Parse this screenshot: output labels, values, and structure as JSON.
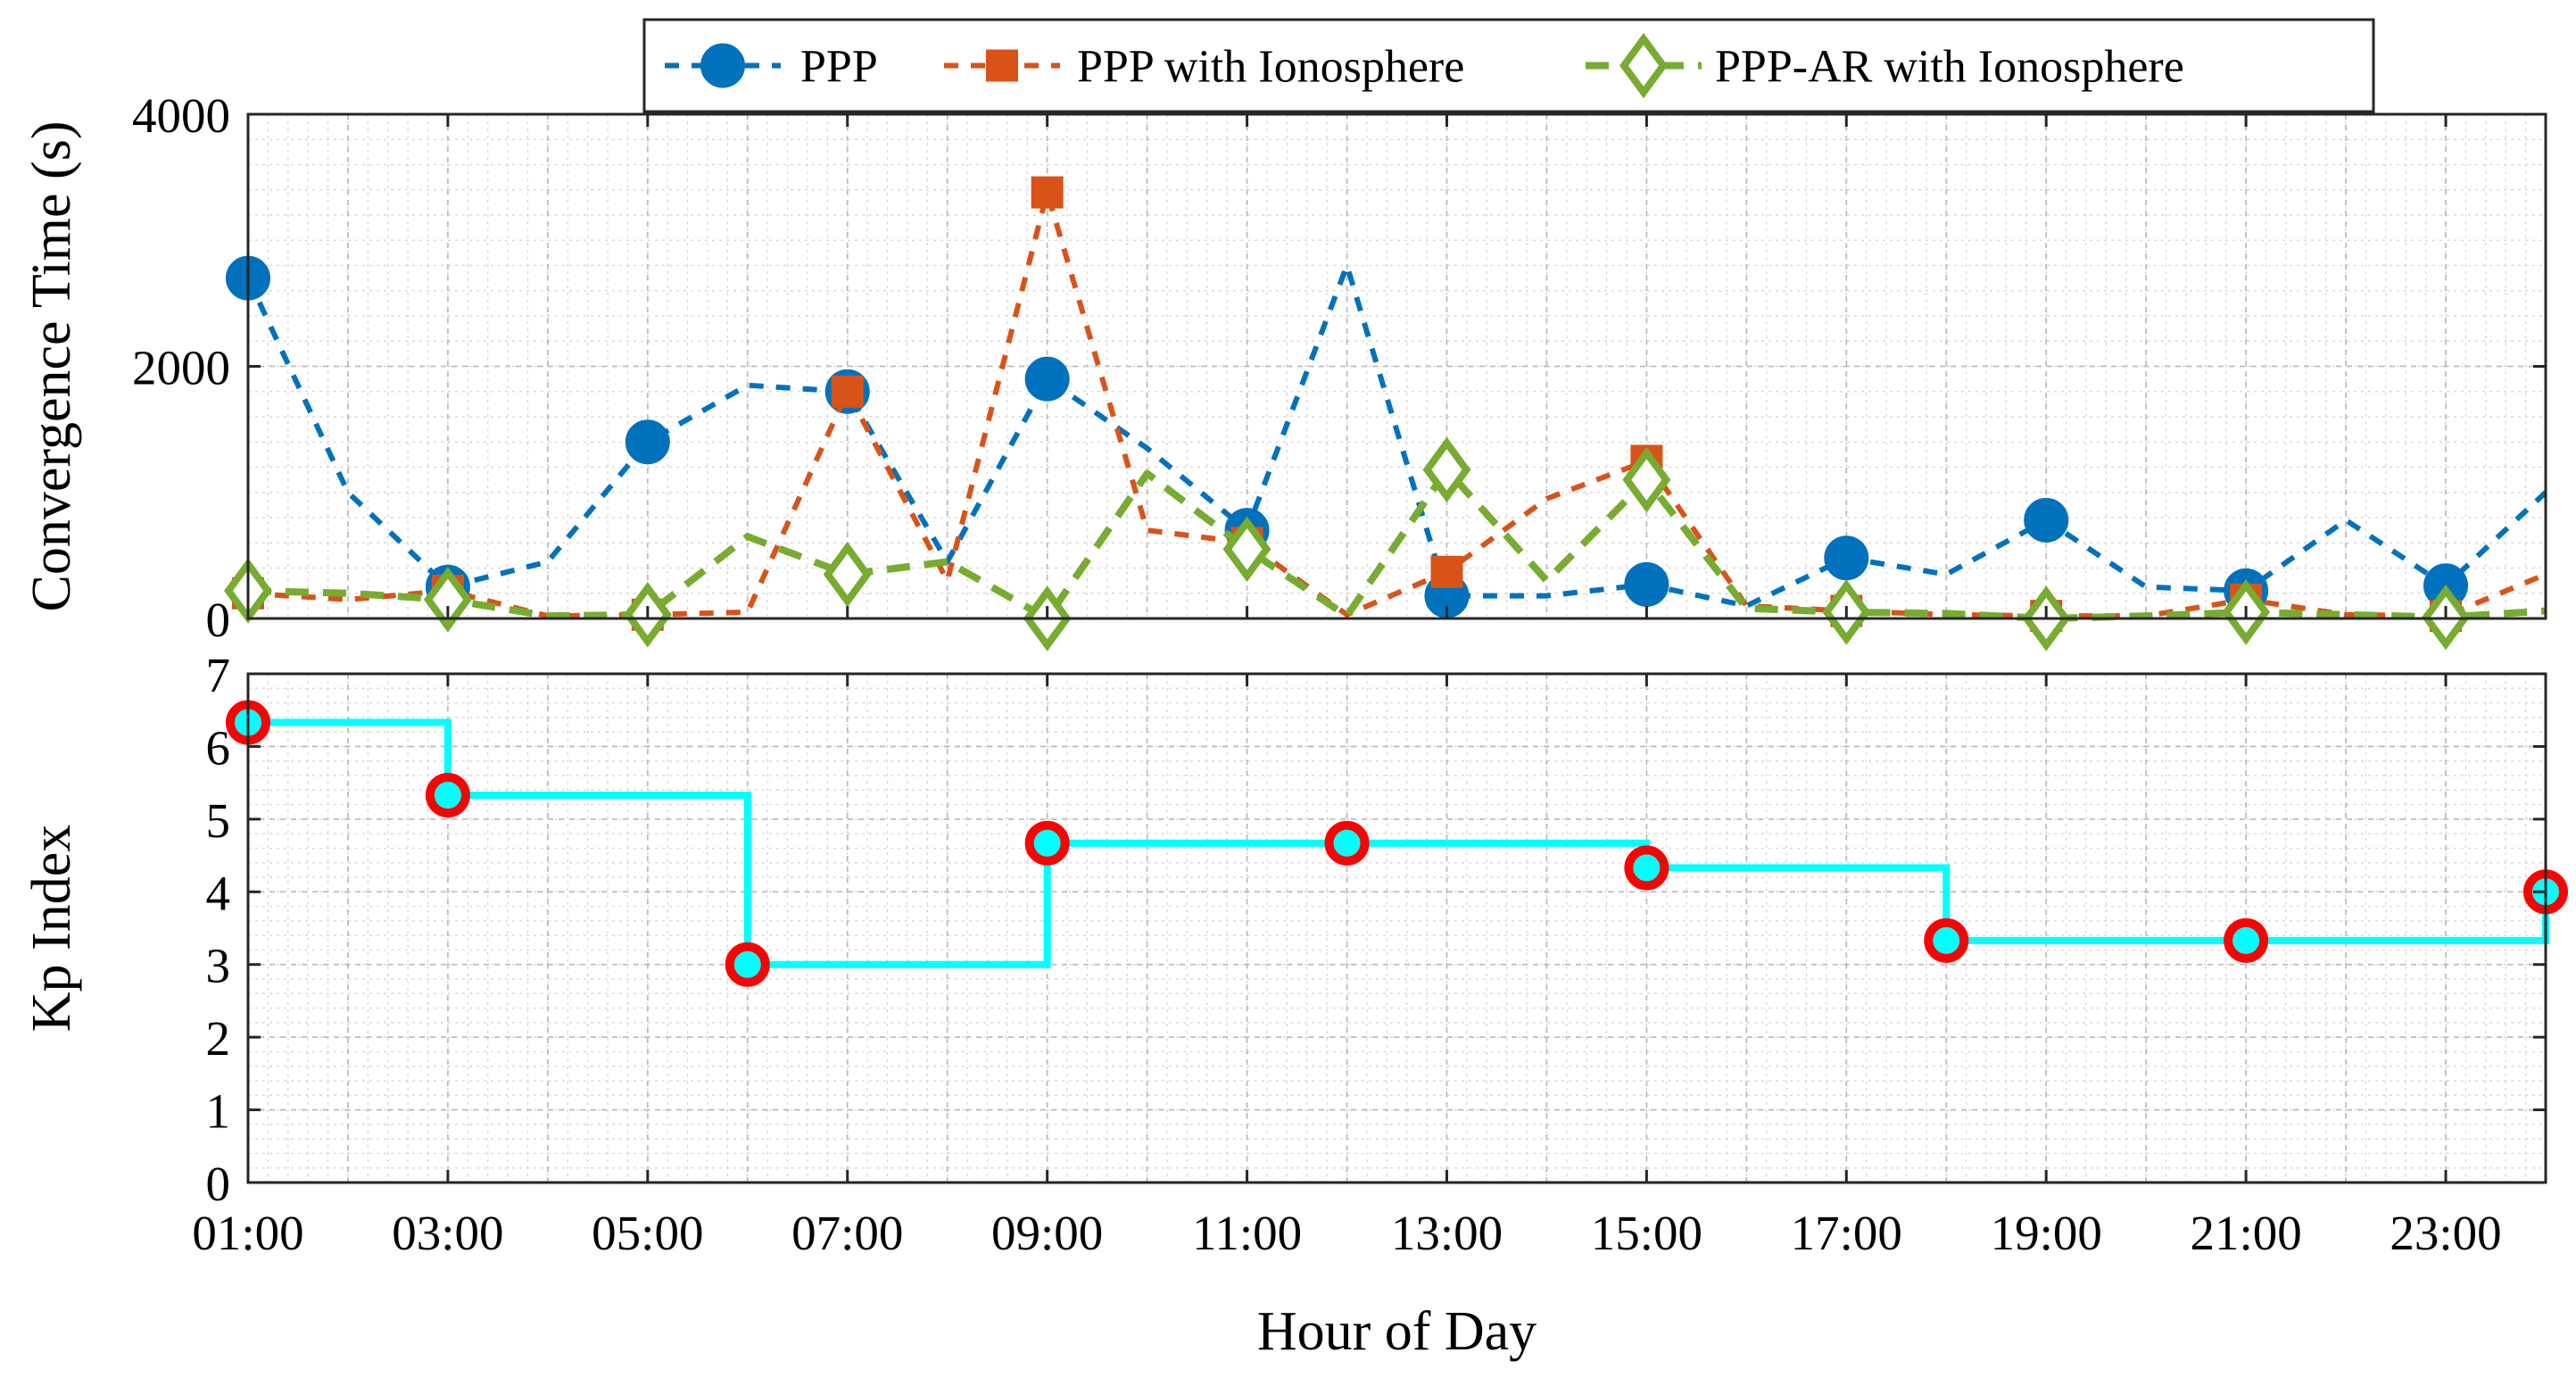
{
  "chart_data": [
    {
      "type": "line",
      "ylabel": "Convergence Time (s)",
      "xlim": [
        1,
        24
      ],
      "ylim": [
        0,
        4000
      ],
      "yticks": [
        0,
        2000,
        4000
      ],
      "ytick_labels": [
        "0",
        "2000",
        "4000"
      ],
      "grid": true,
      "legend_position": "top-center",
      "series": [
        {
          "name": "PPP",
          "color": "#0072BD",
          "marker": "circle",
          "x": [
            1,
            2,
            3,
            4,
            5,
            6,
            7,
            8,
            9,
            10,
            11,
            12,
            13,
            14,
            15,
            16,
            17,
            18,
            19,
            20,
            21,
            22,
            23,
            24
          ],
          "y": [
            2700,
            1000,
            250,
            450,
            1400,
            1850,
            1800,
            450,
            1900,
            1350,
            700,
            2800,
            180,
            180,
            270,
            100,
            480,
            350,
            780,
            250,
            220,
            780,
            260,
            1000
          ],
          "marker_x": [
            1,
            3,
            5,
            7,
            9,
            11,
            13,
            15,
            17,
            19,
            21,
            23
          ]
        },
        {
          "name": "PPP with Ionosphere",
          "color": "#D95319",
          "marker": "square",
          "x": [
            1,
            2,
            3,
            4,
            5,
            6,
            7,
            8,
            9,
            10,
            11,
            12,
            13,
            14,
            15,
            16,
            17,
            18,
            19,
            20,
            21,
            22,
            23,
            24
          ],
          "y": [
            200,
            150,
            220,
            20,
            30,
            50,
            1800,
            300,
            3380,
            700,
            600,
            30,
            370,
            950,
            1250,
            100,
            60,
            30,
            20,
            20,
            150,
            30,
            20,
            350
          ],
          "marker_x": [
            1,
            3,
            5,
            7,
            9,
            11,
            13,
            15,
            17,
            19,
            21,
            23
          ]
        },
        {
          "name": "PPP-AR with Ionosphere",
          "color": "#77AC30",
          "marker": "diamond",
          "x": [
            1,
            2,
            3,
            4,
            5,
            6,
            7,
            8,
            9,
            10,
            11,
            12,
            13,
            14,
            15,
            16,
            17,
            18,
            19,
            20,
            21,
            22,
            23,
            24
          ],
          "y": [
            220,
            200,
            150,
            20,
            30,
            650,
            350,
            450,
            0,
            1150,
            550,
            20,
            1180,
            300,
            1100,
            80,
            50,
            40,
            0,
            20,
            50,
            30,
            10,
            60
          ],
          "marker_x": [
            1,
            3,
            5,
            7,
            9,
            11,
            13,
            15,
            17,
            19,
            21,
            23
          ]
        }
      ]
    },
    {
      "type": "line",
      "style": "step",
      "xlabel": "Hour of Day",
      "ylabel": "Kp Index",
      "xlim": [
        1,
        24
      ],
      "ylim": [
        0,
        7
      ],
      "yticks": [
        0,
        1,
        2,
        3,
        4,
        5,
        6,
        7
      ],
      "ytick_labels": [
        "0",
        "1",
        "2",
        "3",
        "4",
        "5",
        "6",
        "7"
      ],
      "xticks": [
        1,
        3,
        5,
        7,
        9,
        11,
        13,
        15,
        17,
        19,
        21,
        23
      ],
      "xtick_labels": [
        "01:00",
        "03:00",
        "05:00",
        "07:00",
        "09:00",
        "11:00",
        "13:00",
        "15:00",
        "17:00",
        "19:00",
        "21:00",
        "23:00"
      ],
      "grid": true,
      "series": [
        {
          "name": "Kp",
          "color": "#00FFFF",
          "marker_edge_color": "#FF0000",
          "marker": "circle",
          "x": [
            1,
            3,
            6,
            9,
            12,
            15,
            18,
            21,
            24
          ],
          "y": [
            6.33,
            5.33,
            3,
            4.67,
            4.67,
            4.33,
            3.33,
            3.33,
            4
          ]
        }
      ]
    }
  ]
}
